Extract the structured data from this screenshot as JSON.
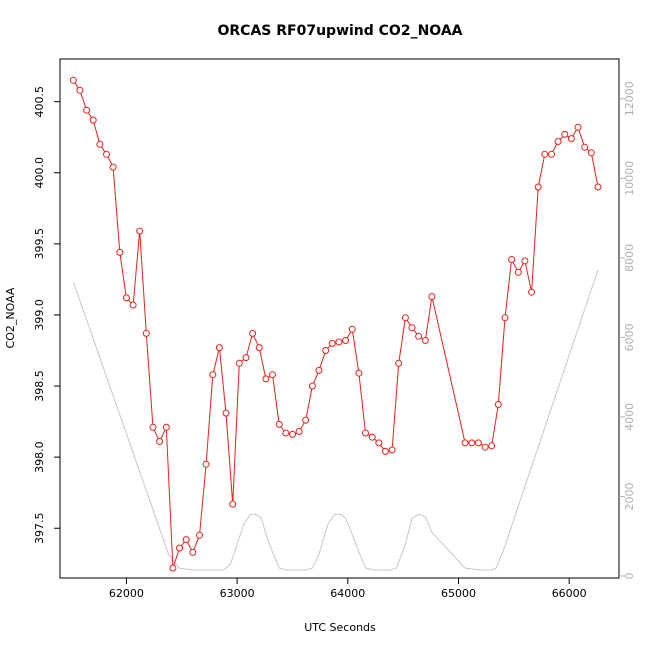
{
  "chart_data": {
    "type": "line",
    "title": "ORCAS RF07upwind CO2_NOAA",
    "xlabel": "UTC Seconds",
    "ylabel": "CO2_NOAA",
    "xlim": [
      61400,
      66450
    ],
    "ylim": [
      397.15,
      400.8
    ],
    "y2lim": [
      -50,
      13000
    ],
    "x_ticks": [
      62000,
      63000,
      64000,
      65000,
      66000
    ],
    "y_ticks": [
      397.5,
      398.0,
      398.5,
      399.0,
      399.5,
      400.0,
      400.5
    ],
    "y_tick_labels": [
      "397.5",
      "398.0",
      "398.5",
      "399.0",
      "399.5",
      "400.0",
      "400.5"
    ],
    "y2_ticks": [
      0,
      2000,
      4000,
      6000,
      8000,
      10000,
      12000
    ],
    "grid": false,
    "colors": {
      "co2": "#e8201a",
      "altitude": "#c8c8c8",
      "axis": "#000000",
      "right_axis": "#b0b0b0"
    },
    "series": [
      {
        "role": "co2",
        "x": [
          61520,
          61580,
          61640,
          61700,
          61760,
          61820,
          61880,
          61940,
          62000,
          62060,
          62120,
          62180,
          62240,
          62300,
          62360,
          62420,
          62480,
          62540,
          62600,
          62660,
          62720,
          62780,
          62840,
          62900,
          62960,
          63020,
          63080,
          63140,
          63200,
          63260,
          63320,
          63380,
          63440,
          63500,
          63560,
          63620,
          63680,
          63740,
          63800,
          63860,
          63920,
          63980,
          64040,
          64100,
          64160,
          64220,
          64280,
          64340,
          64400,
          64460,
          64520,
          64580,
          64640,
          64700,
          64760,
          65060,
          65120,
          65180,
          65240,
          65300,
          65360,
          65420,
          65480,
          65540,
          65600,
          65660,
          65720,
          65780,
          65840,
          65900,
          65960,
          66020,
          66080,
          66140,
          66200,
          66260
        ],
        "y": [
          400.65,
          400.58,
          400.44,
          400.37,
          400.2,
          400.13,
          400.04,
          399.44,
          399.12,
          399.07,
          399.59,
          398.87,
          398.21,
          398.11,
          398.21,
          397.22,
          397.36,
          397.42,
          397.33,
          397.45,
          397.95,
          398.58,
          398.77,
          398.31,
          397.67,
          398.66,
          398.7,
          398.87,
          398.77,
          398.55,
          398.58,
          398.23,
          398.17,
          398.16,
          398.18,
          398.26,
          398.5,
          398.61,
          398.75,
          398.8,
          398.81,
          398.82,
          398.9,
          398.59,
          398.17,
          398.14,
          398.1,
          398.04,
          398.05,
          398.66,
          398.98,
          398.91,
          398.85,
          398.82,
          399.13,
          398.1,
          398.1,
          398.1,
          398.07,
          398.08,
          398.37,
          398.98,
          399.39,
          399.3,
          399.38,
          399.16,
          399.9,
          400.13,
          400.13,
          400.22,
          400.27,
          400.24,
          400.32,
          400.18,
          400.14,
          399.9
        ]
      },
      {
        "role": "altitude",
        "x": [
          61520,
          62380,
          62480,
          62600,
          62700,
          62800,
          62880,
          62940,
          63000,
          63060,
          63120,
          63170,
          63220,
          63260,
          63320,
          63380,
          63440,
          63540,
          63620,
          63680,
          63740,
          63820,
          63880,
          63940,
          63980,
          64040,
          64100,
          64160,
          64240,
          64300,
          64380,
          64440,
          64520,
          64580,
          64640,
          64700,
          64760,
          64860,
          64960,
          65060,
          65200,
          65300,
          65340,
          65400,
          66260
        ],
        "y": [
          7400,
          550,
          200,
          150,
          150,
          150,
          150,
          300,
          800,
          1300,
          1550,
          1550,
          1450,
          1050,
          600,
          200,
          150,
          150,
          150,
          200,
          550,
          1300,
          1550,
          1550,
          1450,
          1050,
          600,
          200,
          150,
          150,
          150,
          200,
          800,
          1450,
          1550,
          1500,
          1100,
          800,
          500,
          200,
          150,
          150,
          200,
          600,
          7700
        ]
      }
    ]
  }
}
